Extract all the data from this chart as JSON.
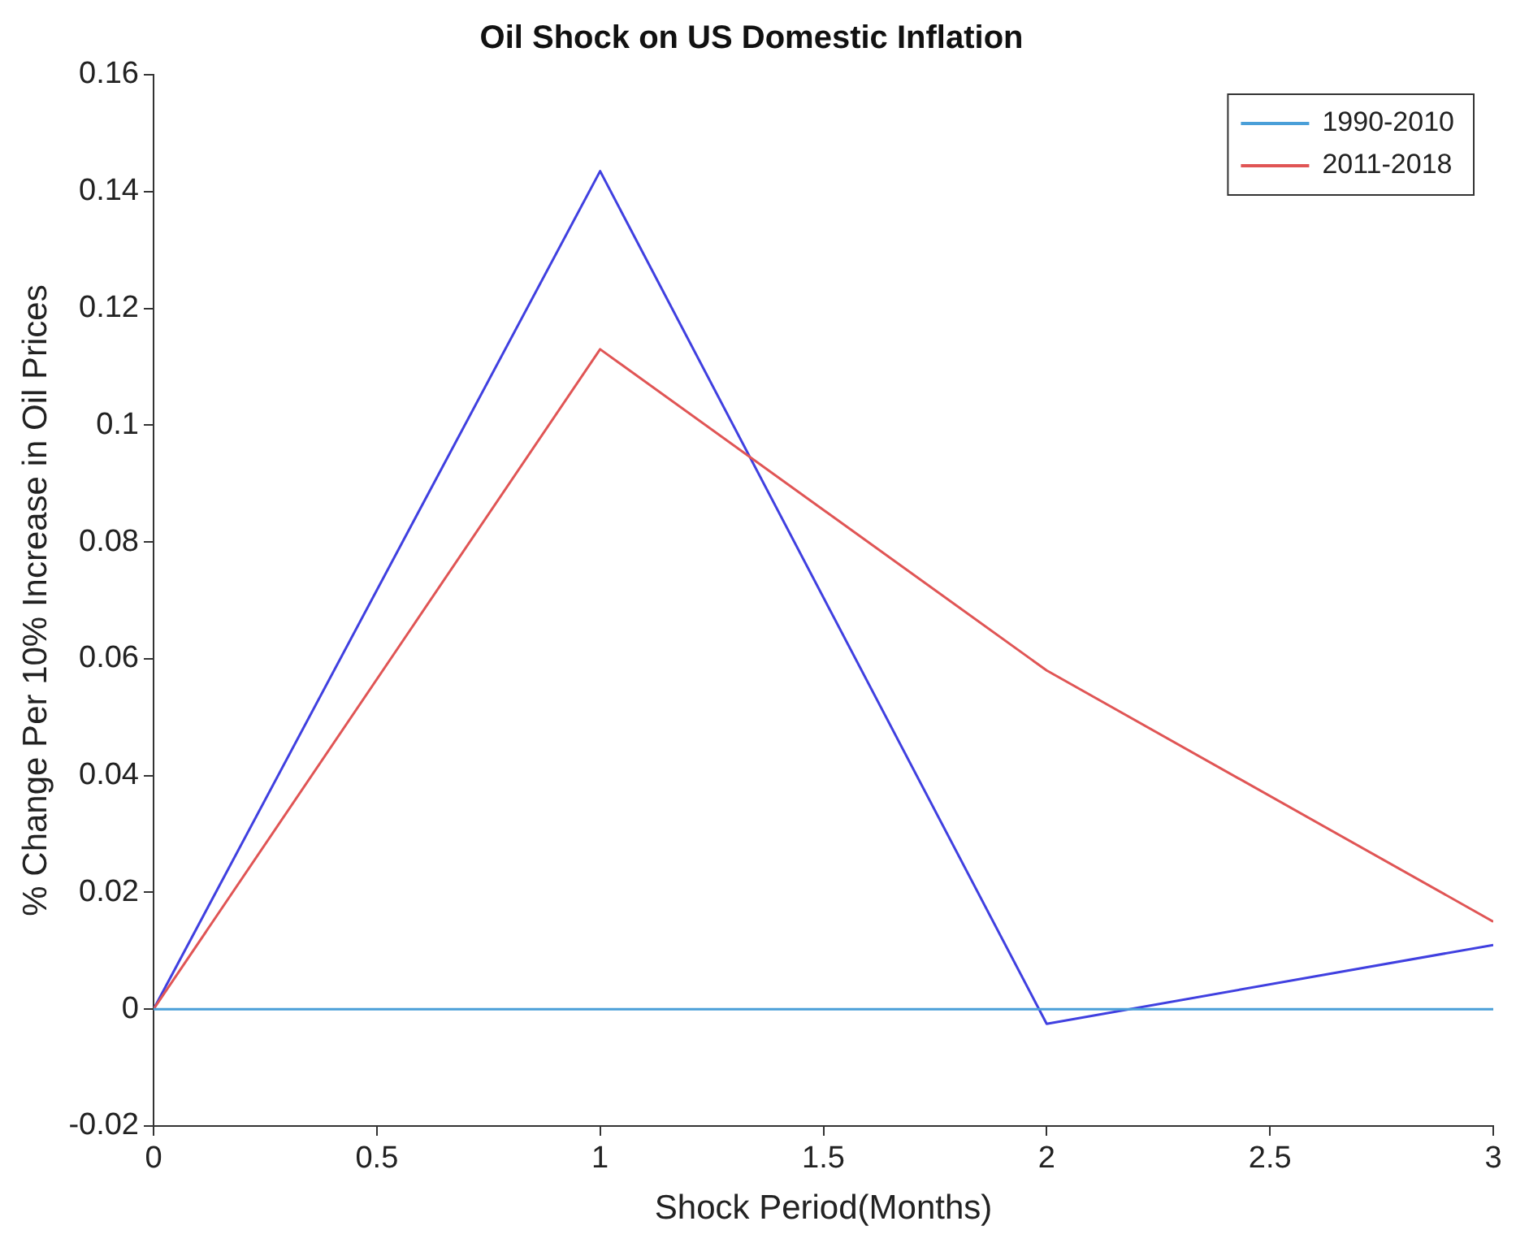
{
  "chart_data": {
    "type": "line",
    "title": "Oil Shock on US Domestic Inflation",
    "xlabel": "Shock Period(Months)",
    "ylabel": "% Change Per 10% Increase in Oil Prices",
    "x": [
      0,
      1,
      2,
      3
    ],
    "series": [
      {
        "name": "1990-2010",
        "color": "#4a9fd8",
        "values": [
          0,
          0,
          0,
          0
        ]
      },
      {
        "name": "2011-2018",
        "color": "#e05555",
        "values": [
          0,
          0.113,
          0.058,
          0.015
        ]
      },
      {
        "color": "#4040e0",
        "values": [
          0,
          0.1435,
          -0.0025,
          0.011
        ]
      }
    ],
    "xlim": [
      0,
      3
    ],
    "xticks": [
      0,
      0.5,
      1,
      1.5,
      2,
      2.5,
      3
    ],
    "ylim": [
      -0.02,
      0.16
    ],
    "yticks": [
      -0.02,
      0,
      0.02,
      0.04,
      0.06,
      0.08,
      0.1,
      0.12,
      0.14,
      0.16
    ],
    "grid": false,
    "legend": "top right",
    "marker": "none",
    "line_style": "solid"
  }
}
